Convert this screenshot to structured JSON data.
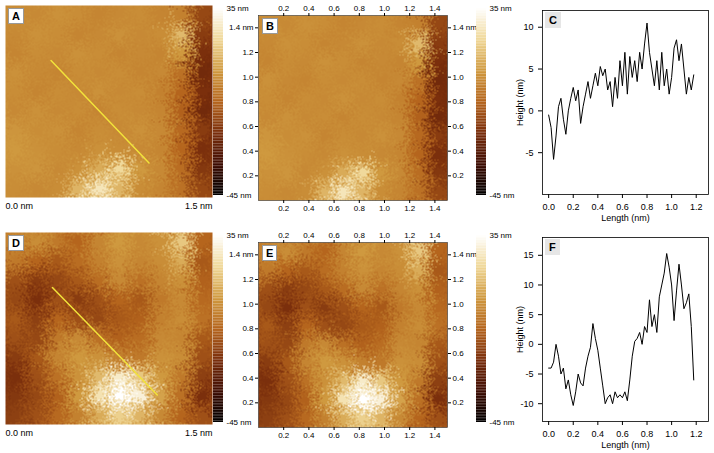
{
  "chart_data": [
    {
      "type": "heatmap",
      "title": "A",
      "xlim": [
        0,
        1.5
      ],
      "ylim": [
        0,
        1.5
      ],
      "xticks": [
        {
          "value": 0,
          "label": "0.0 nm"
        },
        {
          "value": 1.5,
          "label": "1.5 nm"
        }
      ],
      "tick_labels": "x",
      "cells": [
        [
          5,
          4,
          6,
          5,
          3,
          4,
          5,
          3,
          2,
          -12
        ],
        [
          4,
          6,
          5,
          3,
          4,
          6,
          4,
          5,
          15,
          -15
        ],
        [
          3,
          5,
          4,
          6,
          5,
          3,
          4,
          3,
          8,
          -18
        ],
        [
          6,
          4,
          3,
          5,
          4,
          5,
          3,
          4,
          -2,
          -20
        ],
        [
          5,
          3,
          5,
          4,
          6,
          4,
          5,
          2,
          -5,
          -18
        ],
        [
          4,
          6,
          4,
          5,
          3,
          5,
          4,
          3,
          -6,
          -20
        ],
        [
          7,
          5,
          6,
          3,
          5,
          4,
          6,
          4,
          -4,
          -15
        ],
        [
          8,
          6,
          5,
          4,
          6,
          5,
          4,
          3,
          -5,
          -18
        ],
        [
          6,
          7,
          4,
          6,
          12,
          22,
          8,
          4,
          -3,
          -16
        ],
        [
          5,
          4,
          5,
          14,
          26,
          14,
          5,
          3,
          -2,
          -12
        ]
      ],
      "colorbar": {
        "range": [
          -45,
          35
        ],
        "ticks": [
          {
            "value": 35,
            "label": "35 nm"
          },
          {
            "value": -45,
            "label": "-45 nm"
          }
        ]
      },
      "profile_line": {
        "x": [
          0.33,
          1.04
        ],
        "y": [
          1.07,
          0.27
        ],
        "color": "#f2e33a"
      }
    },
    {
      "type": "heatmap",
      "title": "B",
      "xlim": [
        0,
        1.5
      ],
      "ylim": [
        0,
        1.5
      ],
      "xticks": [
        0.2,
        0.4,
        0.6,
        0.8,
        {
          "value": 1,
          "label": "1.0"
        },
        1.2,
        1.4
      ],
      "yticks": [
        0.2,
        0.4,
        0.6,
        0.8,
        {
          "value": 1,
          "label": "1.0"
        },
        1.2,
        {
          "value": 1.4,
          "label": "1.4 nm"
        }
      ],
      "cells": [
        [
          5,
          4,
          6,
          5,
          3,
          4,
          5,
          3,
          2,
          -12
        ],
        [
          4,
          6,
          5,
          3,
          4,
          6,
          4,
          5,
          15,
          -15
        ],
        [
          3,
          5,
          4,
          6,
          5,
          3,
          4,
          3,
          8,
          -18
        ],
        [
          6,
          4,
          3,
          5,
          4,
          5,
          3,
          4,
          -2,
          -20
        ],
        [
          5,
          3,
          5,
          4,
          6,
          4,
          5,
          2,
          -5,
          -18
        ],
        [
          4,
          6,
          4,
          5,
          3,
          5,
          4,
          3,
          -6,
          -20
        ],
        [
          7,
          5,
          6,
          3,
          5,
          4,
          6,
          4,
          -4,
          -15
        ],
        [
          8,
          6,
          5,
          4,
          6,
          5,
          4,
          3,
          -5,
          -18
        ],
        [
          6,
          7,
          4,
          6,
          12,
          22,
          8,
          4,
          -3,
          -16
        ],
        [
          5,
          4,
          5,
          14,
          26,
          14,
          5,
          3,
          -2,
          -12
        ]
      ],
      "colorbar": {
        "range": [
          -45,
          35
        ],
        "ticks": [
          {
            "value": 35,
            "label": "35 nm"
          },
          {
            "value": -45,
            "label": "-45 nm"
          }
        ]
      }
    },
    {
      "type": "line",
      "title": "C",
      "xlabel": "Length (nm)",
      "ylabel": "Height (nm)",
      "color": "#000000",
      "xlim": [
        -0.05,
        1.3
      ],
      "xticks": [
        {
          "value": 0,
          "label": "0.0"
        },
        0.2,
        0.4,
        0.6,
        0.8,
        {
          "value": 1,
          "label": "1.0"
        },
        1.2
      ],
      "ylim": [
        -10,
        12
      ],
      "yticks": [
        -5,
        0,
        5,
        10
      ],
      "x": [
        0,
        0.02,
        0.04,
        0.06,
        0.08,
        0.1,
        0.12,
        0.14,
        0.16,
        0.18,
        0.2,
        0.22,
        0.24,
        0.26,
        0.28,
        0.3,
        0.32,
        0.34,
        0.36,
        0.38,
        0.4,
        0.42,
        0.44,
        0.46,
        0.48,
        0.5,
        0.52,
        0.54,
        0.56,
        0.58,
        0.6,
        0.62,
        0.64,
        0.66,
        0.68,
        0.7,
        0.72,
        0.74,
        0.76,
        0.78,
        0.8,
        0.82,
        0.84,
        0.86,
        0.88,
        0.9,
        0.92,
        0.94,
        0.96,
        0.98,
        1,
        1.02,
        1.04,
        1.06,
        1.08,
        1.1,
        1.12,
        1.14,
        1.16,
        1.18
      ],
      "values": [
        -0.5,
        -2,
        -5.8,
        -3,
        0.5,
        1.5,
        -1,
        -2.8,
        0,
        1.5,
        2.8,
        1.2,
        2.5,
        -1.5,
        0.5,
        2,
        3.5,
        1.5,
        3,
        4.5,
        3,
        5.3,
        4.2,
        5,
        2.5,
        3.5,
        0.5,
        4,
        1.5,
        6,
        3,
        7,
        2,
        6.5,
        4,
        6,
        3.5,
        7,
        5,
        8,
        10.5,
        7,
        5,
        3,
        6,
        2.5,
        7,
        3,
        5,
        2,
        4,
        7.5,
        8.5,
        6,
        8,
        5,
        2,
        4,
        2.5,
        4.3
      ]
    },
    {
      "type": "heatmap",
      "title": "D",
      "xlim": [
        0,
        1.5
      ],
      "ylim": [
        0,
        1.5
      ],
      "xticks": [
        {
          "value": 0,
          "label": "0.0 nm"
        },
        {
          "value": 1.5,
          "label": "1.5 nm"
        }
      ],
      "tick_labels": "x",
      "cells": [
        [
          2,
          5,
          0,
          -5,
          3,
          8,
          4,
          6,
          18,
          -5
        ],
        [
          0,
          -5,
          -8,
          -3,
          2,
          6,
          3,
          5,
          12,
          -8
        ],
        [
          -10,
          -15,
          -12,
          -8,
          -3,
          4,
          -2,
          3,
          6,
          -6
        ],
        [
          -12,
          -18,
          -10,
          -15,
          -10,
          -5,
          -8,
          0,
          4,
          -4
        ],
        [
          -8,
          -14,
          -5,
          -10,
          -12,
          -8,
          -6,
          2,
          5,
          -2
        ],
        [
          -10,
          -12,
          0,
          4,
          -2,
          -6,
          -3,
          4,
          3,
          -8
        ],
        [
          -15,
          -8,
          3,
          8,
          6,
          2,
          0,
          6,
          5,
          -10
        ],
        [
          -18,
          -10,
          -2,
          6,
          15,
          28,
          18,
          8,
          0,
          -14
        ],
        [
          -16,
          -12,
          -6,
          8,
          25,
          35,
          30,
          10,
          -2,
          -18
        ],
        [
          -14,
          -10,
          -4,
          2,
          12,
          20,
          14,
          4,
          -5,
          -10
        ]
      ],
      "colorbar": {
        "range": [
          -45,
          35
        ],
        "ticks": [
          {
            "value": 35,
            "label": "35 nm"
          },
          {
            "value": -45,
            "label": "-45 nm"
          }
        ]
      },
      "profile_line": {
        "x": [
          0.34,
          1.1
        ],
        "y": [
          1.07,
          0.23
        ],
        "color": "#f2e33a"
      }
    },
    {
      "type": "heatmap",
      "title": "E",
      "xlim": [
        0,
        1.5
      ],
      "ylim": [
        0,
        1.5
      ],
      "xticks": [
        0.2,
        0.4,
        0.6,
        0.8,
        {
          "value": 1,
          "label": "1.0"
        },
        1.2,
        1.4
      ],
      "yticks": [
        0.2,
        0.4,
        0.6,
        0.8,
        {
          "value": 1,
          "label": "1.0"
        },
        1.2,
        {
          "value": 1.4,
          "label": "1.4 nm"
        }
      ],
      "cells": [
        [
          2,
          5,
          0,
          -5,
          3,
          8,
          4,
          6,
          18,
          -5
        ],
        [
          0,
          -5,
          -8,
          -3,
          2,
          6,
          3,
          5,
          12,
          -8
        ],
        [
          -10,
          -15,
          -12,
          -8,
          -3,
          4,
          -2,
          3,
          6,
          -6
        ],
        [
          -12,
          -18,
          -10,
          -15,
          -10,
          -5,
          -8,
          0,
          4,
          -4
        ],
        [
          -8,
          -14,
          -5,
          -10,
          -12,
          -8,
          -6,
          2,
          5,
          -2
        ],
        [
          -10,
          -12,
          0,
          4,
          -2,
          -6,
          -3,
          4,
          3,
          -8
        ],
        [
          -15,
          -8,
          3,
          8,
          6,
          2,
          0,
          6,
          5,
          -10
        ],
        [
          -18,
          -10,
          -2,
          6,
          15,
          28,
          18,
          8,
          0,
          -14
        ],
        [
          -16,
          -12,
          -6,
          8,
          25,
          35,
          30,
          10,
          -2,
          -18
        ],
        [
          -14,
          -10,
          -4,
          2,
          12,
          20,
          14,
          4,
          -5,
          -10
        ]
      ],
      "colorbar": {
        "range": [
          -45,
          35
        ],
        "ticks": [
          {
            "value": 35,
            "label": "35 nm"
          },
          {
            "value": -45,
            "label": "-45 nm"
          }
        ]
      }
    },
    {
      "type": "line",
      "title": "F",
      "xlabel": "Length (nm)",
      "ylabel": "Height (nm)",
      "color": "#000000",
      "xlim": [
        -0.05,
        1.3
      ],
      "xticks": [
        {
          "value": 0,
          "label": "0.0"
        },
        0.2,
        0.4,
        0.6,
        0.8,
        {
          "value": 1,
          "label": "1.0"
        },
        1.2
      ],
      "ylim": [
        -13,
        18
      ],
      "yticks": [
        -10,
        -5,
        0,
        5,
        10,
        15
      ],
      "x": [
        0,
        0.02,
        0.04,
        0.06,
        0.08,
        0.1,
        0.12,
        0.14,
        0.16,
        0.18,
        0.2,
        0.22,
        0.24,
        0.26,
        0.28,
        0.3,
        0.32,
        0.34,
        0.36,
        0.38,
        0.4,
        0.42,
        0.44,
        0.46,
        0.48,
        0.5,
        0.52,
        0.54,
        0.56,
        0.58,
        0.6,
        0.62,
        0.64,
        0.66,
        0.68,
        0.7,
        0.72,
        0.74,
        0.76,
        0.78,
        0.8,
        0.82,
        0.84,
        0.86,
        0.88,
        0.9,
        0.92,
        0.94,
        0.96,
        0.98,
        1,
        1.02,
        1.04,
        1.06,
        1.08,
        1.1,
        1.12,
        1.14,
        1.16,
        1.18
      ],
      "values": [
        -4,
        -4,
        -3,
        0,
        -2,
        -5,
        -4,
        -7.5,
        -6,
        -8.5,
        -10.3,
        -8,
        -5,
        -6.5,
        -7,
        -4,
        -2,
        -0.5,
        3.5,
        1,
        -1,
        -4,
        -7,
        -10,
        -9,
        -8.5,
        -10,
        -8,
        -9,
        -8.5,
        -9,
        -8,
        -9.5,
        -6,
        -2,
        0.5,
        1,
        2,
        0,
        3,
        2,
        7.5,
        3,
        5,
        2,
        8,
        10,
        12,
        15.3,
        13,
        10,
        4,
        9,
        13.5,
        10,
        6,
        7,
        8.5,
        3,
        -6
      ]
    }
  ]
}
